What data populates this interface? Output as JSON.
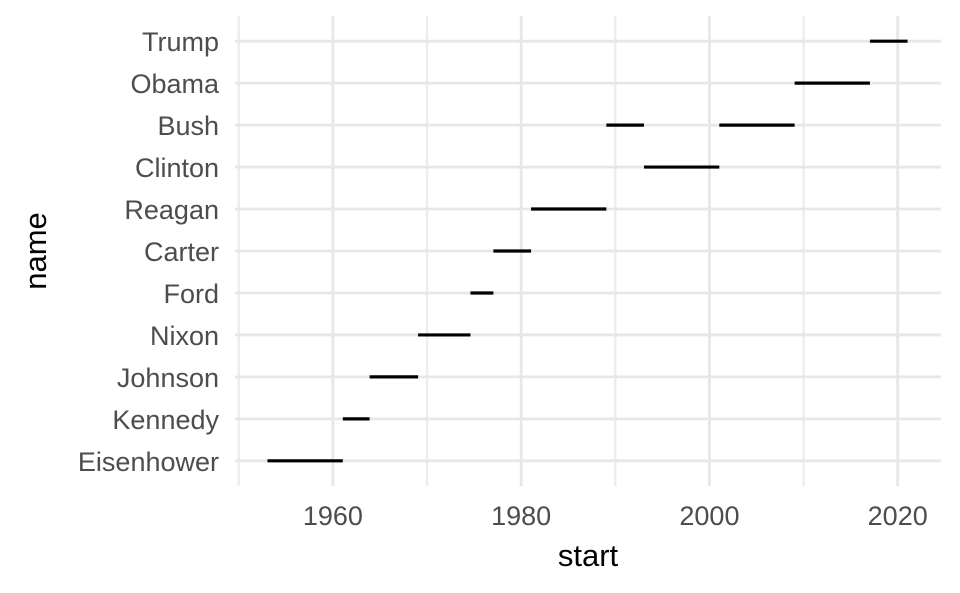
{
  "chart_data": {
    "type": "bar",
    "variant": "horizontal-segment (Gantt-style term ranges, ggplot2 theme_minimal look)",
    "title": "",
    "xlabel": "start",
    "ylabel": "name",
    "categories_top_to_bottom": [
      "Trump",
      "Obama",
      "Bush",
      "Clinton",
      "Reagan",
      "Carter",
      "Ford",
      "Nixon",
      "Johnson",
      "Kennedy",
      "Eisenhower"
    ],
    "segments": [
      {
        "name": "Eisenhower",
        "start": 1953.05,
        "end": 1961.05
      },
      {
        "name": "Kennedy",
        "start": 1961.05,
        "end": 1963.9
      },
      {
        "name": "Johnson",
        "start": 1963.9,
        "end": 1969.05
      },
      {
        "name": "Nixon",
        "start": 1969.05,
        "end": 1974.61
      },
      {
        "name": "Ford",
        "start": 1974.61,
        "end": 1977.05
      },
      {
        "name": "Carter",
        "start": 1977.05,
        "end": 1981.05
      },
      {
        "name": "Reagan",
        "start": 1981.05,
        "end": 1989.05
      },
      {
        "name": "Bush",
        "start": 1989.05,
        "end": 1993.05
      },
      {
        "name": "Clinton",
        "start": 1993.05,
        "end": 2001.05
      },
      {
        "name": "Bush",
        "start": 2001.05,
        "end": 2009.05
      },
      {
        "name": "Obama",
        "start": 2009.05,
        "end": 2017.05
      },
      {
        "name": "Trump",
        "start": 2017.05,
        "end": 2021.05
      }
    ],
    "x_axis": {
      "tick_labels": [
        "1960",
        "1980",
        "2000",
        "2020"
      ],
      "ticks": [
        1960,
        1980,
        2000,
        2020
      ],
      "minor_ticks": [
        1950,
        1970,
        1990,
        2010
      ],
      "lim": [
        1949.6,
        2024.6
      ]
    },
    "y_axis": {
      "discrete": true,
      "expansion_units": 0.6
    },
    "grid": {
      "vertical_major": true,
      "vertical_minor": true,
      "horizontal_major_per_category": true,
      "horizontal_minor": false
    },
    "legend": "none",
    "colors": {
      "background": "#ffffff",
      "segment": "#000000",
      "grid_major": "#e7e7e7",
      "grid_minor": "#ededed",
      "axis_text": "#4d4d4d",
      "axis_title": "#000000"
    }
  }
}
